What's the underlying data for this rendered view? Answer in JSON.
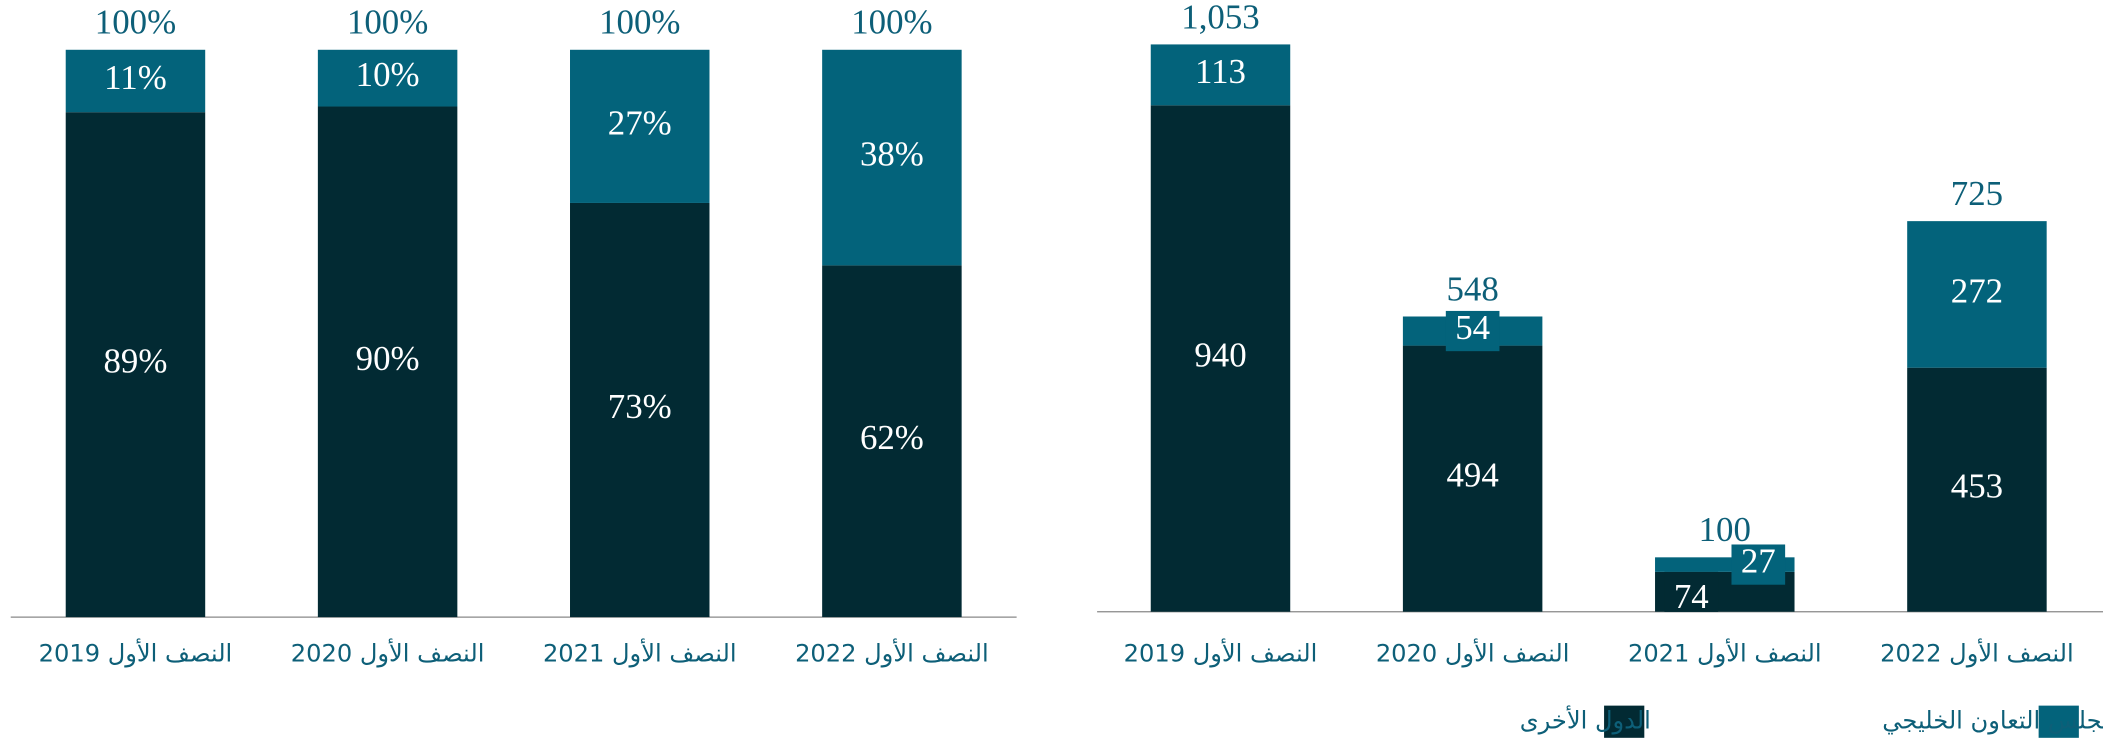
{
  "chart_data": [
    {
      "type": "stacked_bar",
      "categories": [
        "النصف الأول 2019",
        "النصف الأول 2020",
        "النصف الأول 2021",
        "النصف الأول 2022"
      ],
      "series": [
        {
          "color": "#022a33",
          "values": [
            89,
            90,
            73,
            62
          ],
          "value_labels": [
            "89%",
            "90%",
            "73%",
            "62%"
          ]
        },
        {
          "color": "#03637b",
          "values": [
            11,
            10,
            27,
            38
          ],
          "value_labels": [
            "11%",
            "10%",
            "27%",
            "38%"
          ]
        }
      ],
      "totals": [
        100,
        100,
        100,
        100
      ],
      "total_labels": [
        "100%",
        "100%",
        "100%",
        "100%"
      ]
    },
    {
      "type": "stacked_bar",
      "categories": [
        "النصف الأول 2019",
        "النصف الأول 2020",
        "النصف الأول 2021",
        "النصف الأول 2022"
      ],
      "series": [
        {
          "name": "الدول الأخرى",
          "color": "#022a33",
          "values": [
            940,
            494,
            74,
            453
          ]
        },
        {
          "name": "دول مجلس التعاون الخليجي",
          "color": "#03637b",
          "values": [
            113,
            54,
            27,
            272
          ]
        }
      ],
      "totals": [
        1053,
        548,
        100,
        725
      ],
      "total_labels": [
        "1,053",
        "548",
        "100",
        "725"
      ],
      "legend": "bottom-right"
    }
  ]
}
